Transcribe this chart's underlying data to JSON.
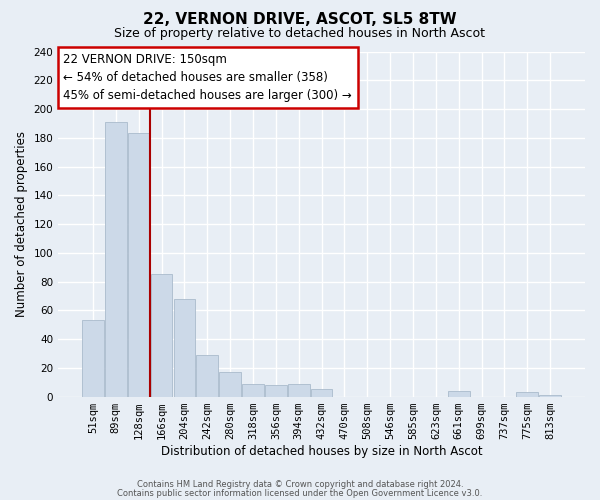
{
  "title": "22, VERNON DRIVE, ASCOT, SL5 8TW",
  "subtitle": "Size of property relative to detached houses in North Ascot",
  "xlabel": "Distribution of detached houses by size in North Ascot",
  "ylabel": "Number of detached properties",
  "bar_labels": [
    "51sqm",
    "89sqm",
    "128sqm",
    "166sqm",
    "204sqm",
    "242sqm",
    "280sqm",
    "318sqm",
    "356sqm",
    "394sqm",
    "432sqm",
    "470sqm",
    "508sqm",
    "546sqm",
    "585sqm",
    "623sqm",
    "661sqm",
    "699sqm",
    "737sqm",
    "775sqm",
    "813sqm"
  ],
  "bar_values": [
    53,
    191,
    183,
    85,
    68,
    29,
    17,
    9,
    8,
    9,
    5,
    0,
    0,
    0,
    0,
    0,
    4,
    0,
    0,
    3,
    1
  ],
  "bar_color": "#ccd9e8",
  "bar_edge_color": "#aabbcc",
  "highlight_line_color": "#aa0000",
  "ylim": [
    0,
    240
  ],
  "yticks": [
    0,
    20,
    40,
    60,
    80,
    100,
    120,
    140,
    160,
    180,
    200,
    220,
    240
  ],
  "annotation_title": "22 VERNON DRIVE: 150sqm",
  "annotation_line1": "← 54% of detached houses are smaller (358)",
  "annotation_line2": "45% of semi-detached houses are larger (300) →",
  "annotation_box_color": "#ffffff",
  "annotation_box_edge": "#cc0000",
  "footer1": "Contains HM Land Registry data © Crown copyright and database right 2024.",
  "footer2": "Contains public sector information licensed under the Open Government Licence v3.0.",
  "background_color": "#e8eef5",
  "plot_background": "#e8eef5",
  "grid_color": "#ffffff",
  "title_fontsize": 11,
  "subtitle_fontsize": 9,
  "axis_label_fontsize": 8.5,
  "tick_fontsize": 7.5
}
